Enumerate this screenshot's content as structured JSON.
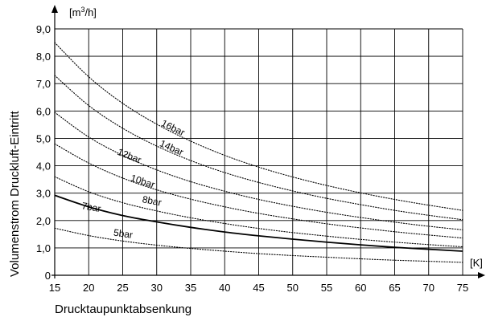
{
  "chart_data": {
    "type": "line",
    "title": "",
    "xlabel": "Drucktaupunktabsenkung",
    "ylabel": "Volumenstrom Druckluft-Eintritt",
    "x_unit": "[K]",
    "y_unit_base": "[m",
    "y_unit_sup": "3",
    "y_unit_tail": "/h]",
    "xlim": [
      15,
      75
    ],
    "ylim": [
      0,
      9
    ],
    "grid": true,
    "x_ticks": [
      {
        "value": 15,
        "label": "15"
      },
      {
        "value": 20,
        "label": "20"
      },
      {
        "value": 25,
        "label": "25"
      },
      {
        "value": 30,
        "label": "30"
      },
      {
        "value": 35,
        "label": "35"
      },
      {
        "value": 40,
        "label": "40"
      },
      {
        "value": 45,
        "label": "45"
      },
      {
        "value": 50,
        "label": "50"
      },
      {
        "value": 55,
        "label": "55"
      },
      {
        "value": 60,
        "label": "60"
      },
      {
        "value": 65,
        "label": "65"
      },
      {
        "value": 70,
        "label": "70"
      },
      {
        "value": 75,
        "label": "75"
      }
    ],
    "y_ticks": [
      {
        "value": 0,
        "label": "0"
      },
      {
        "value": 1,
        "label": "1,0"
      },
      {
        "value": 2,
        "label": "2,0"
      },
      {
        "value": 3,
        "label": "3,0"
      },
      {
        "value": 4,
        "label": "4,0"
      },
      {
        "value": 5,
        "label": "5,0"
      },
      {
        "value": 6,
        "label": "6,0"
      },
      {
        "value": 7,
        "label": "7,0"
      },
      {
        "value": 8,
        "label": "8,0"
      },
      {
        "value": 9,
        "label": "9,0"
      }
    ],
    "x": [
      15,
      20,
      25,
      30,
      35,
      40,
      45,
      50,
      55,
      60,
      65,
      70,
      75
    ],
    "series": [
      {
        "name": "5bar",
        "style": "dotted",
        "label_at": [
          25,
          1.4
        ],
        "label_angle": 8,
        "values": [
          1.72,
          1.45,
          1.25,
          1.1,
          0.98,
          0.88,
          0.79,
          0.72,
          0.66,
          0.6,
          0.55,
          0.51,
          0.47
        ]
      },
      {
        "name": "7bar",
        "style": "solid",
        "label_at": [
          20.3,
          2.37
        ],
        "label_angle": 10,
        "values": [
          2.92,
          2.5,
          2.18,
          1.95,
          1.75,
          1.58,
          1.44,
          1.32,
          1.21,
          1.11,
          1.02,
          0.95,
          0.88
        ]
      },
      {
        "name": "8bar",
        "style": "dotted",
        "label_at": [
          29.2,
          2.6
        ],
        "label_angle": 11,
        "values": [
          3.6,
          3.05,
          2.65,
          2.35,
          2.1,
          1.89,
          1.71,
          1.56,
          1.43,
          1.31,
          1.21,
          1.12,
          1.04
        ]
      },
      {
        "name": "10bar",
        "style": "dotted",
        "label_at": [
          27.8,
          3.32
        ],
        "label_angle": 18,
        "values": [
          4.8,
          4.1,
          3.55,
          3.12,
          2.78,
          2.5,
          2.26,
          2.06,
          1.88,
          1.73,
          1.59,
          1.47,
          1.36
        ]
      },
      {
        "name": "12bar",
        "style": "dotted",
        "label_at": [
          25.8,
          4.25
        ],
        "label_angle": 22,
        "values": [
          5.95,
          5.05,
          4.38,
          3.85,
          3.42,
          3.07,
          2.77,
          2.52,
          2.3,
          2.11,
          1.94,
          1.79,
          1.66
        ]
      },
      {
        "name": "14bar",
        "style": "dotted",
        "label_at": [
          32.0,
          4.55
        ],
        "label_angle": 24,
        "values": [
          7.3,
          6.2,
          5.37,
          4.72,
          4.19,
          3.75,
          3.39,
          3.08,
          2.81,
          2.58,
          2.37,
          2.19,
          2.03
        ]
      },
      {
        "name": "16bar",
        "style": "dotted",
        "label_at": [
          32.2,
          5.28
        ],
        "label_angle": 26,
        "values": [
          8.5,
          7.25,
          6.28,
          5.52,
          4.9,
          4.38,
          3.95,
          3.59,
          3.28,
          3.01,
          2.77,
          2.56,
          2.37
        ]
      }
    ]
  }
}
